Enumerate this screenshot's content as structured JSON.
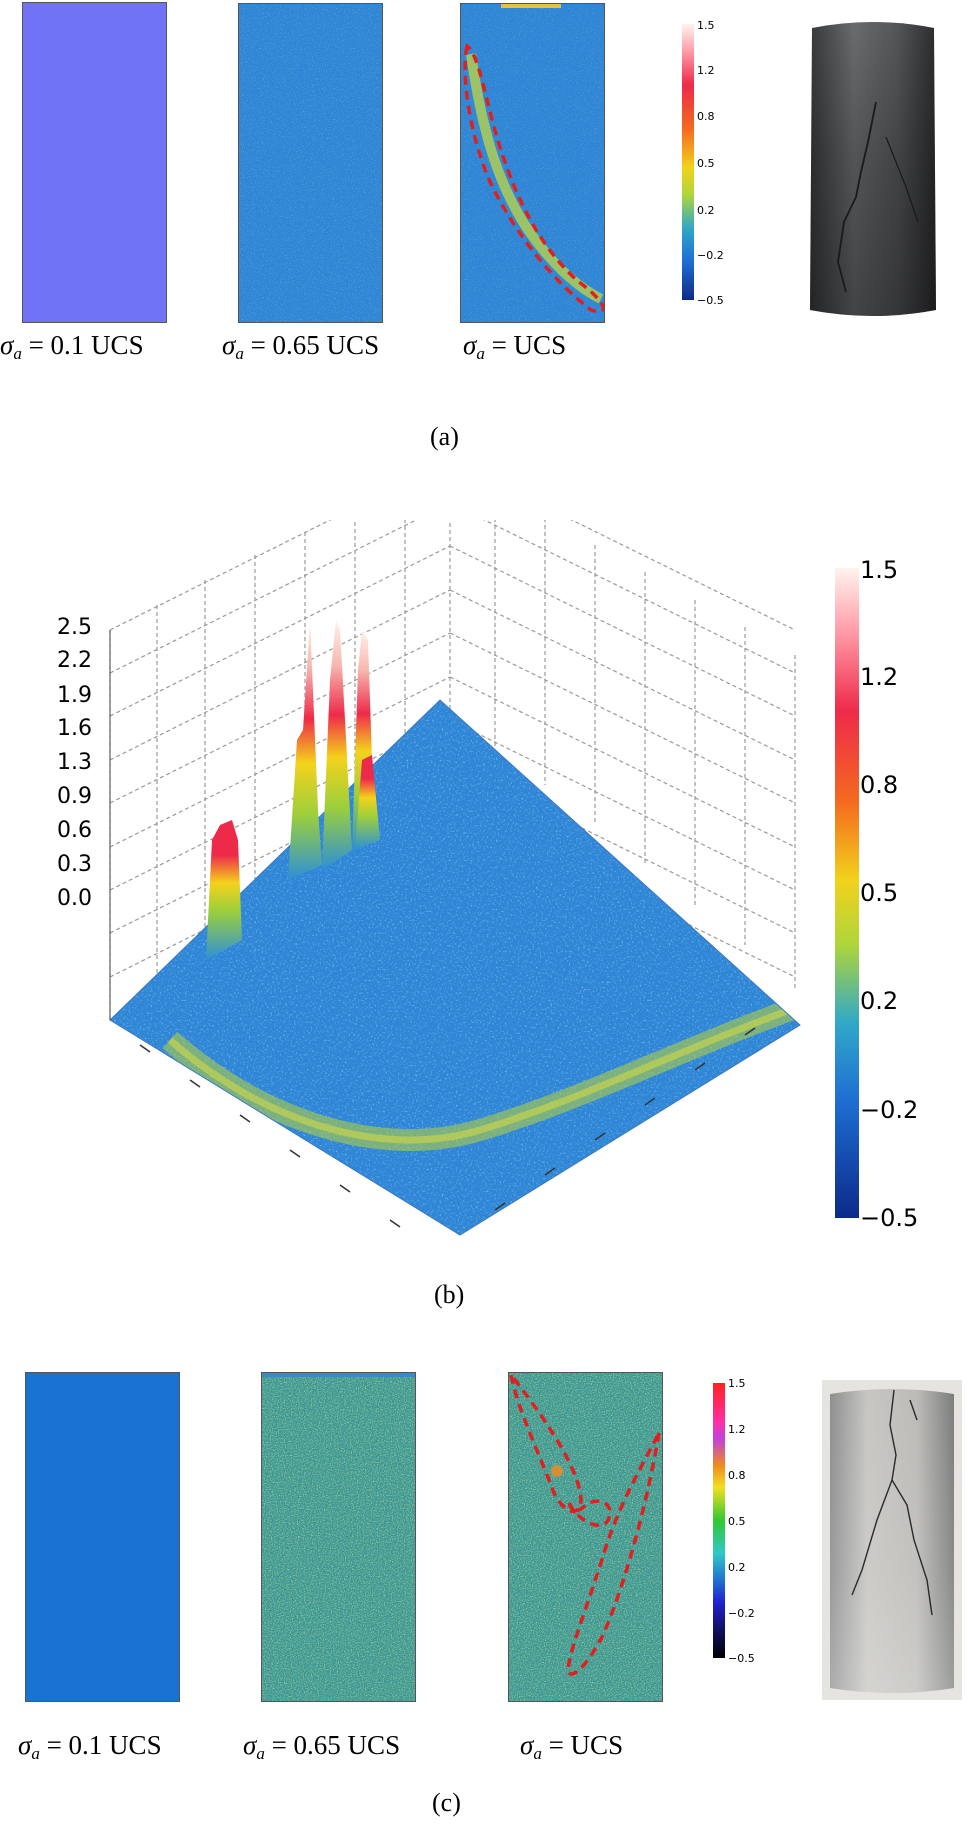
{
  "panel_a": {
    "labels": [
      {
        "sigma": "σ",
        "sub": "a",
        "rest": " = 0.1 UCS"
      },
      {
        "sigma": "σ",
        "sub": "a",
        "rest": " = 0.65 UCS"
      },
      {
        "sigma": "σ",
        "sub": "a",
        "rest": " = UCS"
      }
    ],
    "colorbar_ticks": [
      "1.5",
      "1.2",
      "0.8",
      "0.5",
      "0.2",
      "−0.2",
      "−0.5"
    ],
    "caption": "(a)"
  },
  "panel_b": {
    "z_ticks": [
      "2.5",
      "2.2",
      "1.9",
      "1.6",
      "1.3",
      "0.9",
      "0.6",
      "0.3",
      "0.0"
    ],
    "colorbar_ticks": [
      "1.5",
      "1.2",
      "0.8",
      "0.5",
      "0.2",
      "−0.2",
      "−0.5"
    ],
    "caption": "(b)"
  },
  "panel_c": {
    "labels": [
      {
        "sigma": "σ",
        "sub": "a",
        "rest": " = 0.1 UCS"
      },
      {
        "sigma": "σ",
        "sub": "a",
        "rest": " = 0.65 UCS"
      },
      {
        "sigma": "σ",
        "sub": "a",
        "rest": " = UCS"
      }
    ],
    "colorbar_ticks": [
      "1.5",
      "1.2",
      "0.8",
      "0.5",
      "0.2",
      "−0.2",
      "−0.5"
    ],
    "caption": "(c)"
  },
  "colors": {
    "a_uniform": "#7073f5",
    "a_field": "#2f86d6",
    "c_field": "#1873d2",
    "crack_outline": "#e02020"
  }
}
